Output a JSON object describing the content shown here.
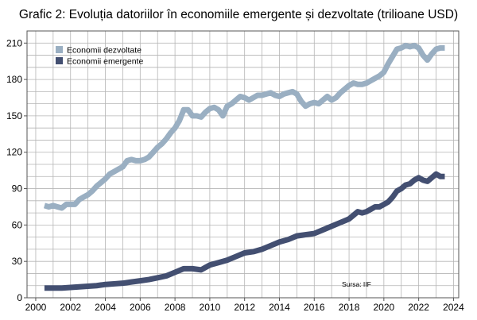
{
  "chart_data": {
    "type": "line",
    "title": "Grafic 2: Evoluția datoriilor în economiile emergente și dezvoltate (trilioane USD)",
    "xlabel": "",
    "ylabel": "",
    "xlim": [
      1999.5,
      2024.3
    ],
    "ylim": [
      0,
      220
    ],
    "x_ticks": [
      2000,
      2002,
      2004,
      2006,
      2008,
      2010,
      2012,
      2014,
      2016,
      2018,
      2020,
      2022,
      2024
    ],
    "y_ticks": [
      0,
      30,
      60,
      90,
      120,
      150,
      180,
      210
    ],
    "grid": true,
    "legend_position": "top-left",
    "source_note": "Sursa: IIF",
    "series": [
      {
        "name": "Economii dezvoltate",
        "color": "#9aafc2",
        "points": [
          [
            2000.5,
            76
          ],
          [
            2000.75,
            75
          ],
          [
            2001.0,
            76
          ],
          [
            2001.25,
            75
          ],
          [
            2001.5,
            74
          ],
          [
            2001.75,
            77
          ],
          [
            2002.0,
            77
          ],
          [
            2002.25,
            77
          ],
          [
            2002.5,
            81
          ],
          [
            2002.75,
            83
          ],
          [
            2003.0,
            85
          ],
          [
            2003.25,
            88
          ],
          [
            2003.5,
            92
          ],
          [
            2003.75,
            95
          ],
          [
            2004.0,
            98
          ],
          [
            2004.25,
            102
          ],
          [
            2004.5,
            104
          ],
          [
            2004.75,
            106
          ],
          [
            2005.0,
            108
          ],
          [
            2005.25,
            113
          ],
          [
            2005.5,
            114
          ],
          [
            2005.75,
            113
          ],
          [
            2006.0,
            113
          ],
          [
            2006.25,
            114
          ],
          [
            2006.5,
            116
          ],
          [
            2006.75,
            120
          ],
          [
            2007.0,
            124
          ],
          [
            2007.25,
            127
          ],
          [
            2007.5,
            131
          ],
          [
            2007.75,
            136
          ],
          [
            2008.0,
            140
          ],
          [
            2008.25,
            146
          ],
          [
            2008.5,
            155
          ],
          [
            2008.75,
            155
          ],
          [
            2009.0,
            150
          ],
          [
            2009.25,
            150
          ],
          [
            2009.5,
            149
          ],
          [
            2009.75,
            153
          ],
          [
            2010.0,
            156
          ],
          [
            2010.25,
            157
          ],
          [
            2010.5,
            155
          ],
          [
            2010.75,
            150
          ],
          [
            2011.0,
            158
          ],
          [
            2011.25,
            160
          ],
          [
            2011.5,
            163
          ],
          [
            2011.75,
            166
          ],
          [
            2012.0,
            165
          ],
          [
            2012.25,
            163
          ],
          [
            2012.5,
            165
          ],
          [
            2012.75,
            167
          ],
          [
            2013.0,
            167
          ],
          [
            2013.25,
            168
          ],
          [
            2013.5,
            169
          ],
          [
            2013.75,
            167
          ],
          [
            2014.0,
            166
          ],
          [
            2014.25,
            168
          ],
          [
            2014.5,
            169
          ],
          [
            2014.75,
            170
          ],
          [
            2015.0,
            168
          ],
          [
            2015.25,
            162
          ],
          [
            2015.5,
            158
          ],
          [
            2015.75,
            160
          ],
          [
            2016.0,
            161
          ],
          [
            2016.25,
            160
          ],
          [
            2016.5,
            163
          ],
          [
            2016.75,
            166
          ],
          [
            2017.0,
            163
          ],
          [
            2017.25,
            165
          ],
          [
            2017.5,
            169
          ],
          [
            2017.75,
            172
          ],
          [
            2018.0,
            175
          ],
          [
            2018.25,
            177
          ],
          [
            2018.5,
            176
          ],
          [
            2018.75,
            176
          ],
          [
            2019.0,
            177
          ],
          [
            2019.25,
            179
          ],
          [
            2019.5,
            181
          ],
          [
            2019.75,
            183
          ],
          [
            2020.0,
            186
          ],
          [
            2020.25,
            193
          ],
          [
            2020.5,
            199
          ],
          [
            2020.75,
            205
          ],
          [
            2021.0,
            206
          ],
          [
            2021.25,
            208
          ],
          [
            2021.5,
            207
          ],
          [
            2021.75,
            208
          ],
          [
            2022.0,
            206
          ],
          [
            2022.25,
            200
          ],
          [
            2022.5,
            196
          ],
          [
            2022.75,
            201
          ],
          [
            2023.0,
            205
          ],
          [
            2023.25,
            206
          ],
          [
            2023.5,
            206
          ]
        ]
      },
      {
        "name": "Economii emergente",
        "color": "#434f71",
        "points": [
          [
            2000.5,
            8
          ],
          [
            2001.0,
            8
          ],
          [
            2001.5,
            8
          ],
          [
            2002.0,
            8.5
          ],
          [
            2002.5,
            9
          ],
          [
            2003.0,
            9.5
          ],
          [
            2003.5,
            10
          ],
          [
            2004.0,
            11
          ],
          [
            2004.5,
            11.5
          ],
          [
            2005.0,
            12
          ],
          [
            2005.5,
            13
          ],
          [
            2006.0,
            14
          ],
          [
            2006.5,
            15
          ],
          [
            2007.0,
            16.5
          ],
          [
            2007.5,
            18
          ],
          [
            2008.0,
            21
          ],
          [
            2008.5,
            24
          ],
          [
            2009.0,
            24
          ],
          [
            2009.5,
            23
          ],
          [
            2010.0,
            27
          ],
          [
            2010.5,
            29
          ],
          [
            2011.0,
            31
          ],
          [
            2011.5,
            34
          ],
          [
            2012.0,
            37
          ],
          [
            2012.5,
            38
          ],
          [
            2013.0,
            40
          ],
          [
            2013.5,
            43
          ],
          [
            2014.0,
            46
          ],
          [
            2014.5,
            48
          ],
          [
            2015.0,
            51
          ],
          [
            2015.5,
            52
          ],
          [
            2016.0,
            53
          ],
          [
            2016.5,
            56
          ],
          [
            2017.0,
            59
          ],
          [
            2017.5,
            62
          ],
          [
            2018.0,
            65
          ],
          [
            2018.25,
            68
          ],
          [
            2018.5,
            71
          ],
          [
            2018.75,
            70
          ],
          [
            2019.0,
            71
          ],
          [
            2019.25,
            73
          ],
          [
            2019.5,
            75
          ],
          [
            2019.75,
            75
          ],
          [
            2020.0,
            77
          ],
          [
            2020.25,
            79
          ],
          [
            2020.5,
            83
          ],
          [
            2020.75,
            88
          ],
          [
            2021.0,
            90
          ],
          [
            2021.25,
            93
          ],
          [
            2021.5,
            94
          ],
          [
            2021.75,
            97
          ],
          [
            2022.0,
            99
          ],
          [
            2022.25,
            97
          ],
          [
            2022.5,
            96
          ],
          [
            2022.75,
            99
          ],
          [
            2023.0,
            102
          ],
          [
            2023.25,
            100
          ],
          [
            2023.5,
            100
          ]
        ]
      }
    ]
  }
}
